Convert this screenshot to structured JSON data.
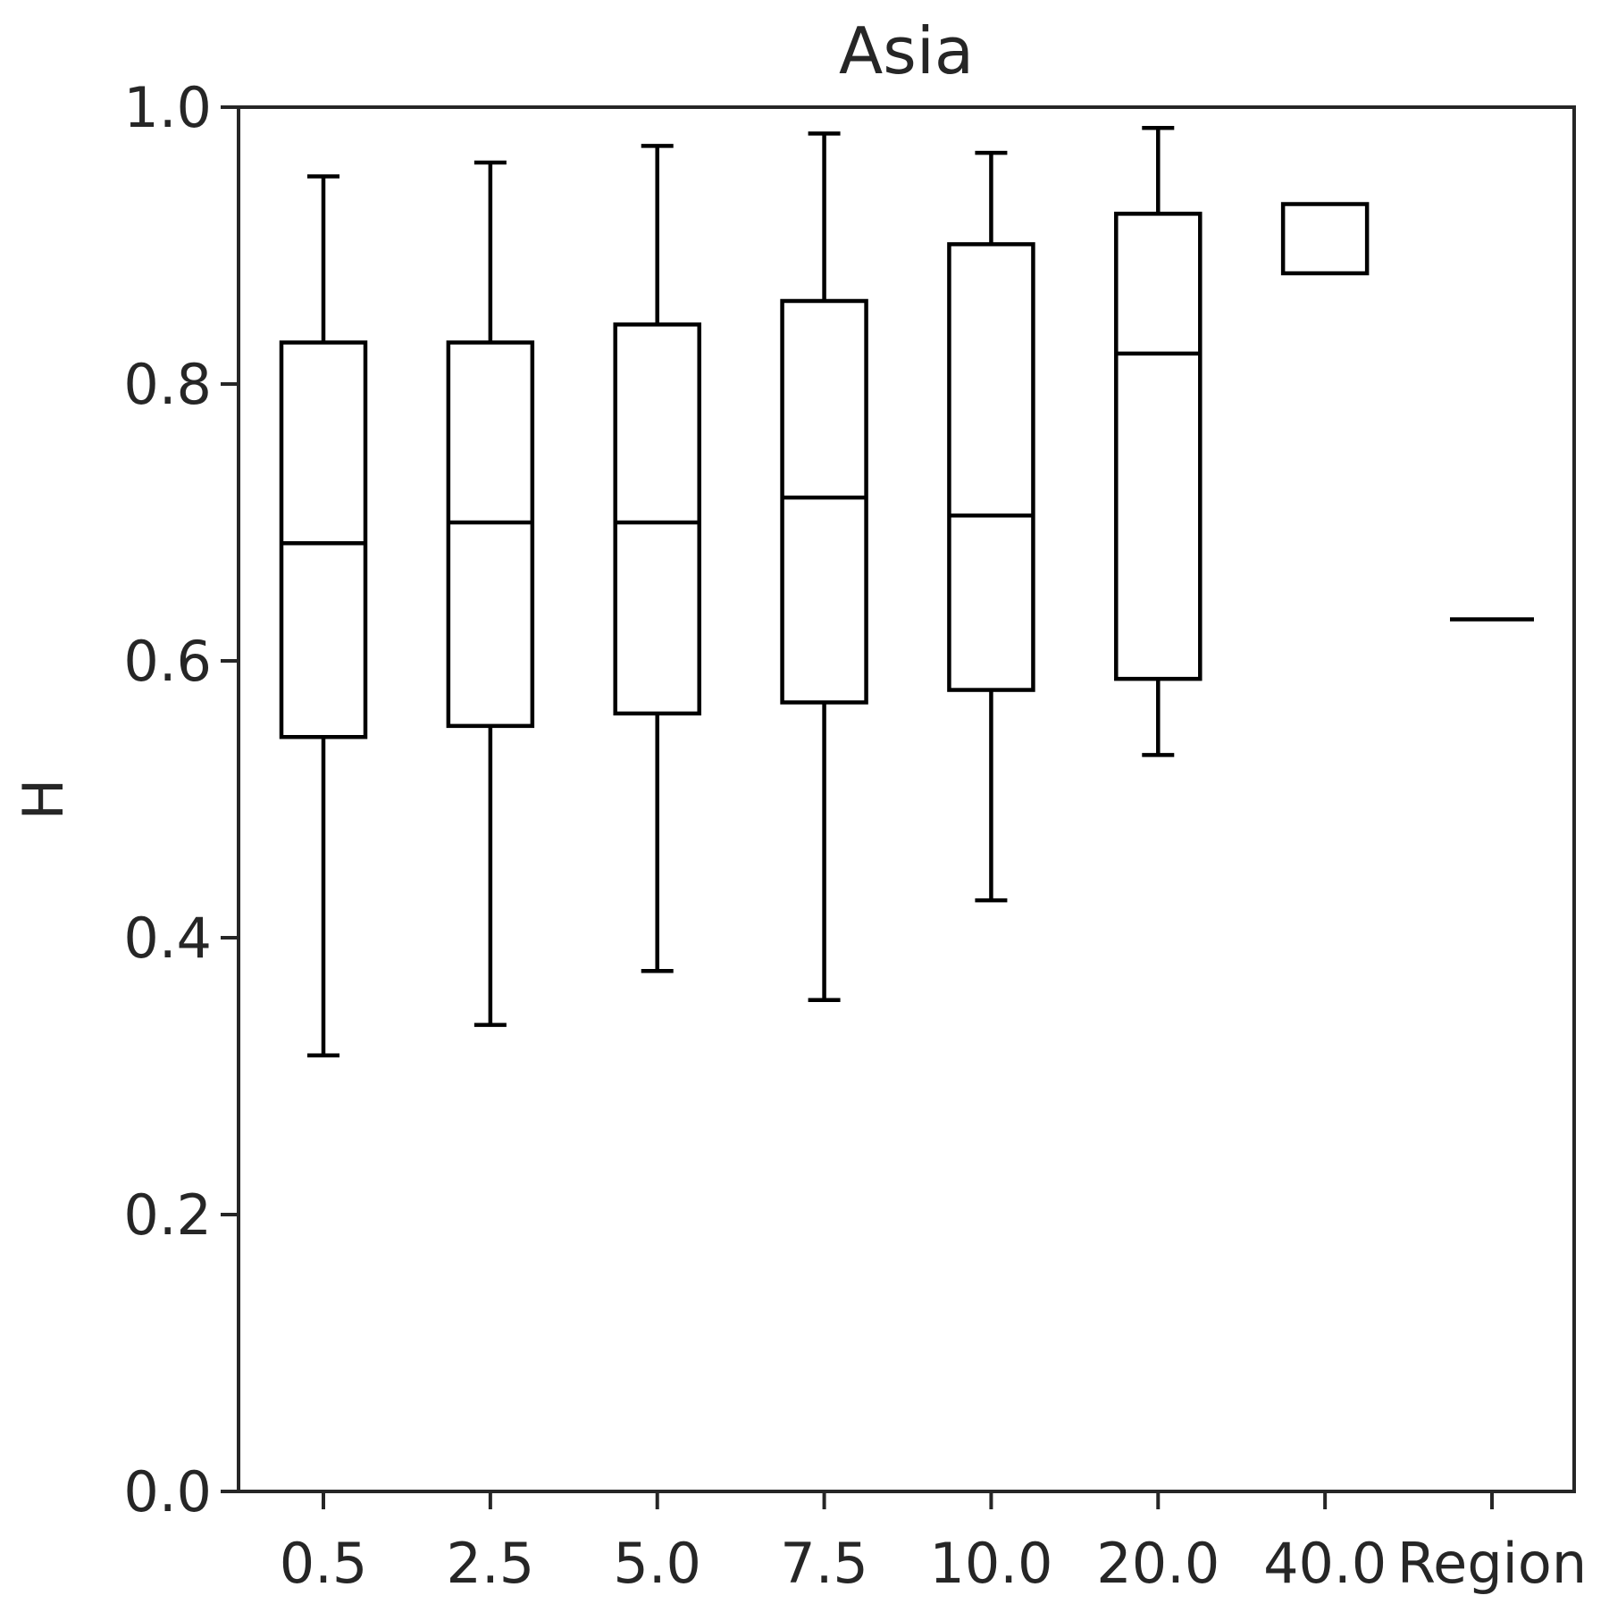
{
  "chart_data": {
    "type": "box",
    "title": "Asia",
    "xlabel": "",
    "ylabel": "H",
    "ylim": [
      0.0,
      1.0
    ],
    "yticks": [
      "0.0",
      "0.2",
      "0.4",
      "0.6",
      "0.8",
      "1.0"
    ],
    "grid": false,
    "categories": [
      "0.5",
      "2.5",
      "5.0",
      "7.5",
      "10.0",
      "20.0",
      "40.0",
      "Region"
    ],
    "boxes": [
      {
        "category": "0.5",
        "whisker_low": 0.315,
        "q1": 0.545,
        "median": 0.685,
        "q3": 0.83,
        "whisker_high": 0.95
      },
      {
        "category": "2.5",
        "whisker_low": 0.337,
        "q1": 0.553,
        "median": 0.7,
        "q3": 0.83,
        "whisker_high": 0.96
      },
      {
        "category": "5.0",
        "whisker_low": 0.376,
        "q1": 0.562,
        "median": 0.7,
        "q3": 0.843,
        "whisker_high": 0.972
      },
      {
        "category": "7.5",
        "whisker_low": 0.355,
        "q1": 0.57,
        "median": 0.718,
        "q3": 0.86,
        "whisker_high": 0.981
      },
      {
        "category": "10.0",
        "whisker_low": 0.427,
        "q1": 0.579,
        "median": 0.705,
        "q3": 0.901,
        "whisker_high": 0.967
      },
      {
        "category": "20.0",
        "whisker_low": 0.532,
        "q1": 0.587,
        "median": 0.822,
        "q3": 0.923,
        "whisker_high": 0.985
      },
      {
        "category": "40.0",
        "whisker_low": 0.88,
        "q1": 0.88,
        "median": 0.93,
        "q3": 0.93,
        "whisker_high": 0.93
      },
      {
        "category": "Region",
        "whisker_low": 0.63,
        "q1": 0.63,
        "median": 0.63,
        "q3": 0.63,
        "whisker_high": 0.63
      }
    ],
    "colors": {
      "box_stroke": "#000000",
      "axis": "#262626",
      "text": "#262626"
    }
  }
}
